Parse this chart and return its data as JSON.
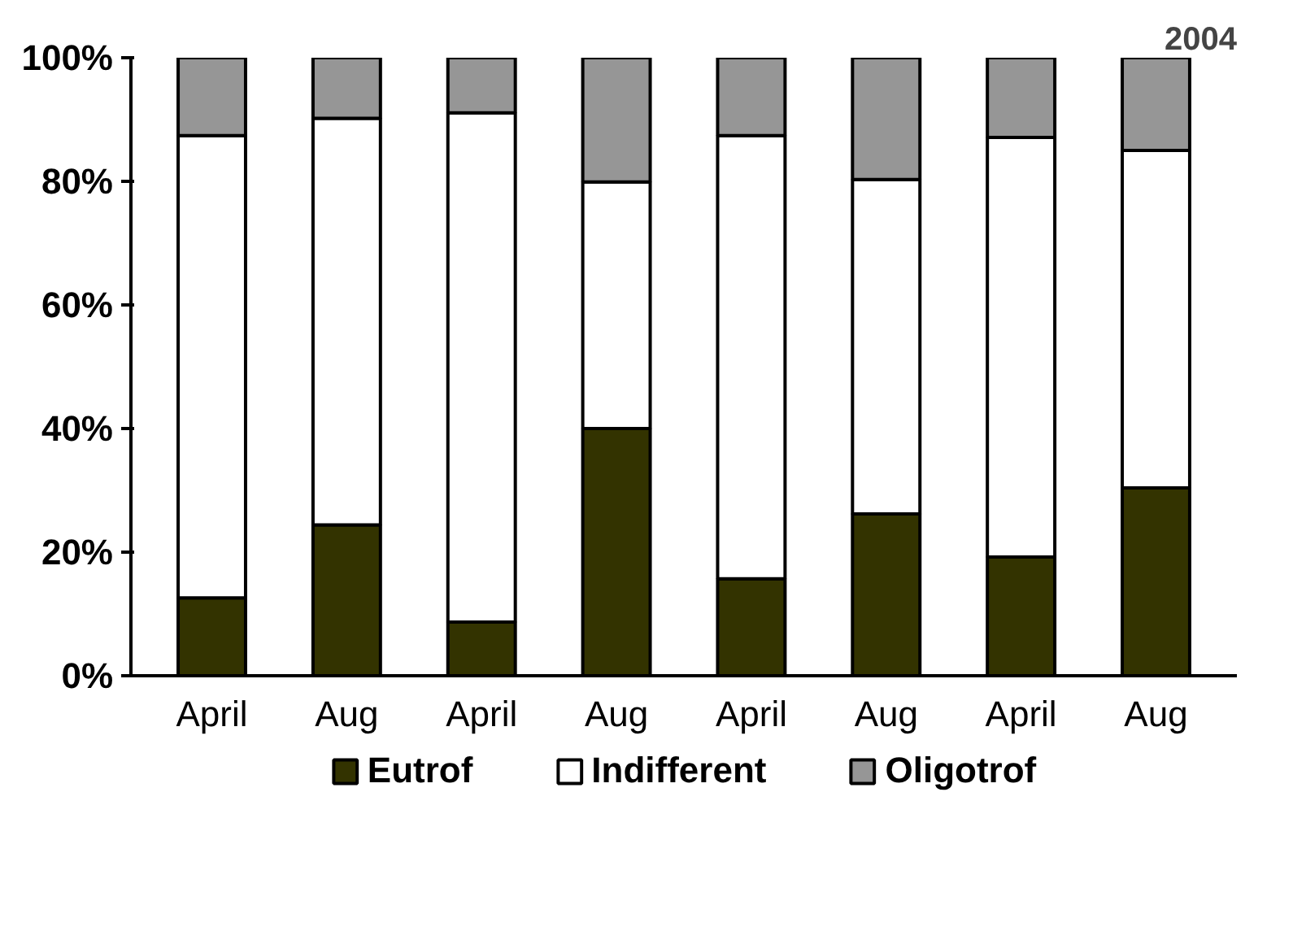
{
  "chart_data": {
    "type": "bar",
    "stacked": true,
    "categories": [
      "April",
      "Aug",
      "April",
      "Aug",
      "April",
      "Aug",
      "April",
      "Aug"
    ],
    "series": [
      {
        "name": "Eutrof",
        "color": "#333300",
        "values": [
          12.6,
          24.4,
          8.7,
          40.0,
          15.7,
          26.2,
          19.2,
          30.4
        ]
      },
      {
        "name": "Indifferent",
        "color": "#ffffff",
        "values": [
          74.8,
          65.8,
          82.4,
          39.9,
          71.7,
          54.1,
          67.9,
          54.6
        ]
      },
      {
        "name": "Oligotrof",
        "color": "#969696",
        "values": [
          12.6,
          9.8,
          8.9,
          20.1,
          12.6,
          19.7,
          12.9,
          15.0
        ]
      }
    ],
    "ylim": [
      0,
      100
    ],
    "yticks": [
      {
        "value": 0,
        "label": "0%"
      },
      {
        "value": 20,
        "label": "20%"
      },
      {
        "value": 40,
        "label": "40%"
      },
      {
        "value": 60,
        "label": "60%"
      },
      {
        "value": 80,
        "label": "80%"
      },
      {
        "value": 100,
        "label": "100%"
      }
    ],
    "annotations": [
      "2004"
    ],
    "grid": false,
    "legend": "bottom"
  }
}
